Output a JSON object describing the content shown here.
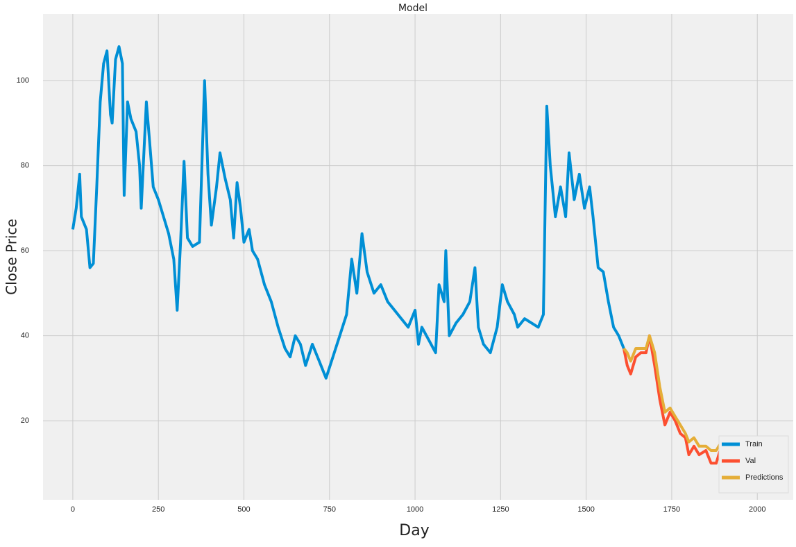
{
  "chart_data": {
    "type": "line",
    "title": "Model",
    "xlabel": "Day",
    "ylabel": "Close Price",
    "xlim": [
      -87,
      2105
    ],
    "ylim": [
      1.4,
      115.7
    ],
    "xticks": [
      0,
      250,
      500,
      750,
      1000,
      1250,
      1500,
      1750,
      2000
    ],
    "yticks": [
      20,
      40,
      60,
      80,
      100
    ],
    "grid": true,
    "legend": "lower right",
    "series": [
      {
        "name": "Train",
        "color": "#008fd5",
        "x": [
          0,
          10,
          20,
          25,
          40,
          50,
          60,
          70,
          80,
          90,
          100,
          110,
          115,
          125,
          135,
          145,
          150,
          160,
          170,
          185,
          195,
          200,
          215,
          225,
          235,
          250,
          265,
          280,
          295,
          305,
          315,
          325,
          335,
          350,
          370,
          385,
          395,
          405,
          420,
          430,
          445,
          460,
          470,
          480,
          490,
          500,
          515,
          525,
          540,
          560,
          580,
          600,
          620,
          635,
          650,
          665,
          680,
          700,
          720,
          740,
          760,
          780,
          800,
          815,
          830,
          845,
          860,
          880,
          900,
          920,
          940,
          960,
          980,
          1000,
          1010,
          1020,
          1040,
          1060,
          1070,
          1085,
          1090,
          1100,
          1120,
          1140,
          1160,
          1175,
          1185,
          1200,
          1220,
          1240,
          1255,
          1270,
          1290,
          1300,
          1320,
          1340,
          1360,
          1375,
          1385,
          1395,
          1410,
          1425,
          1440,
          1450,
          1465,
          1480,
          1495,
          1510,
          1520,
          1535,
          1550,
          1565,
          1580,
          1595,
          1610
        ],
        "values": [
          65,
          70,
          78,
          68,
          65,
          56,
          57,
          75,
          95,
          104,
          107,
          92,
          90,
          105,
          108,
          104,
          73,
          95,
          91,
          88,
          80,
          70,
          95,
          85,
          75,
          72,
          68,
          64,
          58,
          46,
          62,
          81,
          63,
          61,
          62,
          100,
          78,
          66,
          75,
          83,
          77,
          72,
          63,
          76,
          70,
          62,
          65,
          60,
          58,
          52,
          48,
          42,
          37,
          35,
          40,
          38,
          33,
          38,
          34,
          30,
          35,
          40,
          45,
          58,
          50,
          64,
          55,
          50,
          52,
          48,
          46,
          44,
          42,
          46,
          38,
          42,
          39,
          36,
          52,
          48,
          60,
          40,
          43,
          45,
          48,
          56,
          42,
          38,
          36,
          42,
          52,
          48,
          45,
          42,
          44,
          43,
          42,
          45,
          94,
          80,
          68,
          75,
          68,
          83,
          72,
          78,
          70,
          75,
          68,
          56,
          55,
          48,
          42,
          40,
          37
        ]
      },
      {
        "name": "Val",
        "color": "#fc4f30",
        "x": [
          1610,
          1620,
          1630,
          1645,
          1660,
          1675,
          1685,
          1700,
          1715,
          1730,
          1745,
          1760,
          1775,
          1790,
          1800,
          1815,
          1830,
          1850,
          1865,
          1880,
          1895
        ],
        "values": [
          37,
          33,
          31,
          35,
          36,
          36,
          40,
          33,
          25,
          19,
          22,
          20,
          17,
          16,
          12,
          14,
          12,
          13,
          10,
          10,
          14
        ]
      },
      {
        "name": "Predictions",
        "color": "#e5ae38",
        "x": [
          1610,
          1620,
          1630,
          1645,
          1660,
          1675,
          1685,
          1700,
          1715,
          1730,
          1745,
          1760,
          1775,
          1790,
          1800,
          1815,
          1830,
          1850,
          1865,
          1880,
          1895
        ],
        "values": [
          37,
          36,
          34,
          37,
          37,
          37,
          40,
          36,
          28,
          22,
          23,
          21,
          19,
          17,
          15,
          16,
          14,
          14,
          13,
          13,
          15
        ]
      }
    ]
  }
}
